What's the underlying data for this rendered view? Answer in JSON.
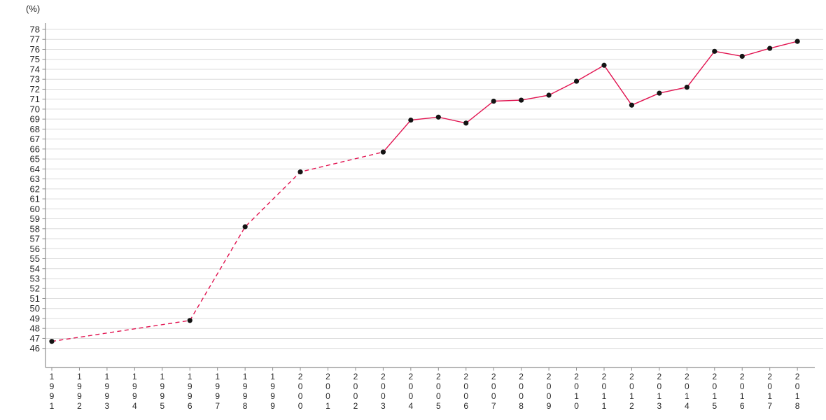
{
  "chart_data": {
    "type": "line",
    "title": "",
    "xlabel": "",
    "ylabel": "(%)",
    "x_range": [
      1991,
      2018
    ],
    "ylim": [
      46,
      78
    ],
    "y_tick_step": 1,
    "grid": true,
    "legend": "none",
    "x_tick_labels": [
      "1991",
      "1992",
      "1993",
      "1994",
      "1995",
      "1996",
      "1997",
      "1998",
      "1999",
      "2000",
      "2001",
      "2002",
      "2003",
      "2004",
      "2005",
      "2006",
      "2007",
      "2008",
      "2009",
      "2010",
      "2011",
      "2012",
      "2013",
      "2014",
      "2015",
      "2016",
      "2017",
      "2018"
    ],
    "series": [
      {
        "name": "percentage",
        "line_color": "#e11350",
        "marker_color": "#141414",
        "segments": [
          {
            "style": "dashed",
            "points": [
              [
                1991,
                46.7
              ],
              [
                1996,
                48.8
              ],
              [
                1998,
                58.2
              ],
              [
                2000,
                63.7
              ],
              [
                2003,
                65.7
              ]
            ]
          },
          {
            "style": "solid",
            "points": [
              [
                2003,
                65.7
              ],
              [
                2004,
                68.9
              ],
              [
                2005,
                69.2
              ],
              [
                2006,
                68.6
              ],
              [
                2007,
                70.8
              ],
              [
                2008,
                70.9
              ],
              [
                2009,
                71.4
              ],
              [
                2010,
                72.8
              ],
              [
                2011,
                74.4
              ],
              [
                2012,
                70.4
              ],
              [
                2013,
                71.6
              ],
              [
                2014,
                72.2
              ],
              [
                2015,
                75.8
              ],
              [
                2016,
                75.3
              ],
              [
                2017,
                76.1
              ],
              [
                2018,
                76.8
              ]
            ]
          }
        ]
      }
    ],
    "colors": {
      "grid": "#dcdcdc",
      "axis": "#8c8c8c",
      "tick_text": "#262626",
      "background": "#ffffff"
    }
  }
}
